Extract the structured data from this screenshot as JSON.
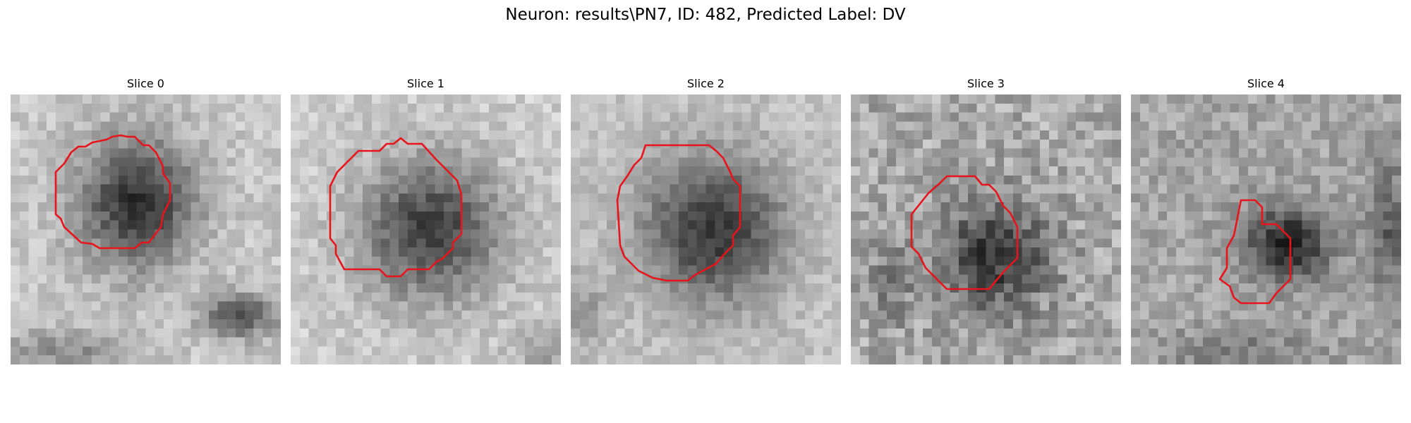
{
  "figure": {
    "title": "Neuron: results\\PN7, ID: 482, Predicted Label: DV"
  },
  "panels": [
    {
      "title": "Slice 0",
      "image_description": "grayscale microscopy patch with a large dark rounded blob upper-centre, dark band at lower right",
      "contour_color": "#e8141b"
    },
    {
      "title": "Slice 1",
      "image_description": "grayscale microscopy patch with a large dark rounded blob filling the centre",
      "contour_color": "#e8141b"
    },
    {
      "title": "Slice 2",
      "image_description": "grayscale microscopy patch with a large dark round blob in the centre",
      "contour_color": "#e8141b"
    },
    {
      "title": "Slice 3",
      "image_description": "noisy grayscale microscopy patch with a medium dark blob lower-centre",
      "contour_color": "#e8141b"
    },
    {
      "title": "Slice 4",
      "image_description": "grayscale microscopy patch with a small dark blob right of centre",
      "contour_color": "#e8141b"
    }
  ]
}
